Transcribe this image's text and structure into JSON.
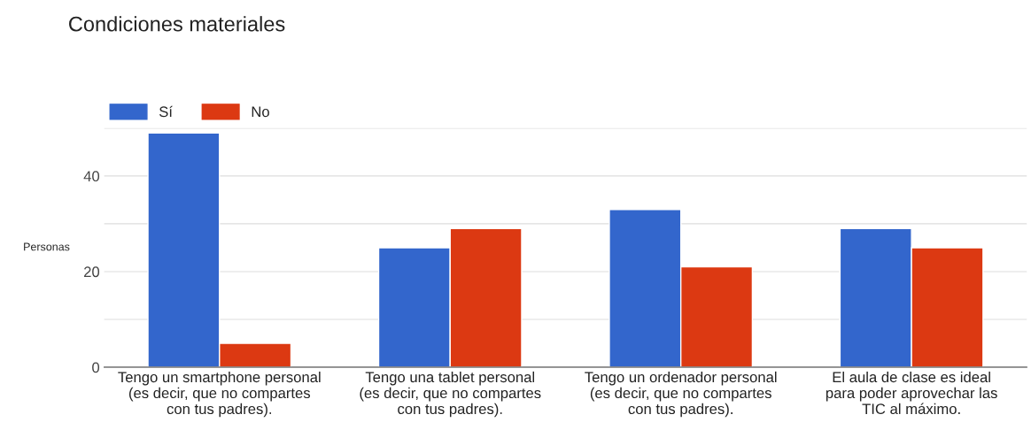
{
  "chart_data": {
    "type": "bar",
    "title": "Condiciones materiales",
    "ylabel": "Personas",
    "categories": [
      "Tengo un smartphone personal (es decir, que no compartes con tus padres).",
      "Tengo una tablet personal (es decir, que no compartes con tus padres).",
      "Tengo un ordenador personal (es decir, que no compartes con tus padres).",
      "El aula de clase es ideal para poder aprovechar las TIC al máximo."
    ],
    "series": [
      {
        "name": "Sí",
        "color": "#3366cc",
        "values": [
          49,
          25,
          33,
          29
        ]
      },
      {
        "name": "No",
        "color": "#dc3912",
        "values": [
          5,
          29,
          21,
          25
        ]
      }
    ],
    "ylim": [
      0,
      50
    ],
    "yticks": [
      0,
      {
        "value": 10,
        "label": null
      },
      20,
      {
        "value": 30,
        "label": null
      },
      40,
      {
        "value": 50,
        "label": null
      }
    ],
    "grid": "y",
    "legend": "top left"
  }
}
